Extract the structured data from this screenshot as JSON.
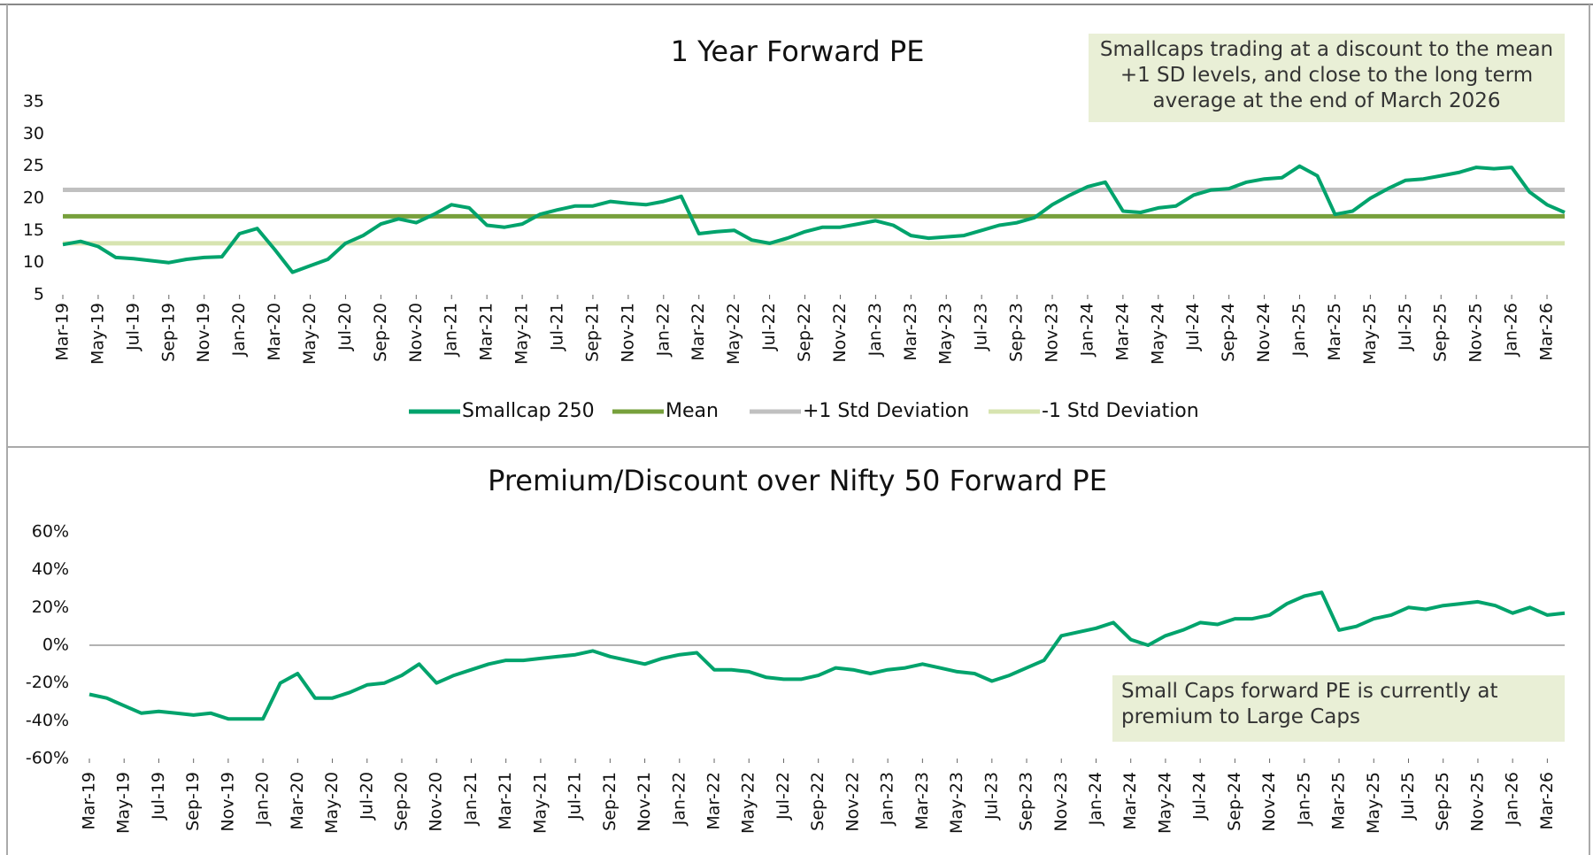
{
  "chart_data": [
    {
      "type": "line",
      "title": "1 Year Forward PE",
      "annotation": "Smallcaps trading at a discount to the mean +1 SD levels, and close to the long term average at the end of March 2026",
      "categories": [
        "Mar-19",
        null,
        "May-19",
        null,
        "Jul-19",
        null,
        "Sep-19",
        null,
        "Nov-19",
        null,
        "Jan-20",
        null,
        "Mar-20",
        null,
        "May-20",
        null,
        "Jul-20",
        null,
        "Sep-20",
        null,
        "Nov-20",
        null,
        "Jan-21",
        null,
        "Mar-21",
        null,
        "May-21",
        null,
        "Jul-21",
        null,
        "Sep-21",
        null,
        "Nov-21",
        null,
        "Jan-22",
        null,
        "Mar-22",
        null,
        "May-22",
        null,
        "Jul-22",
        null,
        "Sep-22",
        null,
        "Nov-22",
        null,
        "Jan-23",
        null,
        "Mar-23",
        null,
        "May-23",
        null,
        "Jul-23",
        null,
        "Sep-23",
        null,
        "Nov-23",
        null,
        "Jan-24",
        null,
        "Mar-24",
        null,
        "May-24",
        null,
        "Jul-24",
        null,
        "Sep-24",
        null,
        "Nov-24",
        null,
        "Jan-25",
        null,
        "Mar-25",
        null,
        "May-25",
        null,
        "Jul-25",
        null,
        "Sep-25",
        null,
        "Nov-25",
        null,
        "Jan-26",
        null,
        "Mar-26",
        null
      ],
      "series": [
        {
          "name": "Smallcap 250",
          "color": "#00a36c",
          "values": [
            12.8,
            13.3,
            12.5,
            10.8,
            10.6,
            10.3,
            10.0,
            10.5,
            10.8,
            10.9,
            14.5,
            15.3,
            12.0,
            8.5,
            9.5,
            10.5,
            13.0,
            14.2,
            16.0,
            16.8,
            16.2,
            17.5,
            19.0,
            18.5,
            15.8,
            15.5,
            16.0,
            17.5,
            18.2,
            18.8,
            18.8,
            19.5,
            19.2,
            19.0,
            19.5,
            20.3,
            14.5,
            14.8,
            15.0,
            13.5,
            13.0,
            13.8,
            14.8,
            15.5,
            15.5,
            16.0,
            16.5,
            15.8,
            14.2,
            13.8,
            14.0,
            14.2,
            15.0,
            15.8,
            16.2,
            17.0,
            19.0,
            20.5,
            21.8,
            22.5,
            18.0,
            17.8,
            18.5,
            18.8,
            20.5,
            21.3,
            21.5,
            22.5,
            23.0,
            23.2,
            25.0,
            23.5,
            17.5,
            18.0,
            20.0,
            21.5,
            22.8,
            23.0,
            23.5,
            24.0,
            24.8,
            24.6,
            24.8,
            21.0,
            19.0,
            17.8
          ]
        }
      ],
      "lines": [
        {
          "name": "Mean",
          "color": "#77a03c",
          "value": 17.2
        },
        {
          "name": "+1 Std Deviation",
          "color": "#c0c0c0",
          "value": 21.3
        },
        {
          "name": "-1 Std Deviation",
          "color": "#d7e4b0",
          "value": 13.0
        }
      ],
      "ylim": [
        5,
        35
      ],
      "yticks": [
        5,
        10,
        15,
        20,
        25,
        30,
        35
      ],
      "grid": false
    },
    {
      "type": "line",
      "title": "Premium/Discount over Nifty 50 Forward PE",
      "annotation": "Small Caps forward PE is currently at premium to Large Caps",
      "categories": [
        "Mar-19",
        null,
        "May-19",
        null,
        "Jul-19",
        null,
        "Sep-19",
        null,
        "Nov-19",
        null,
        "Jan-20",
        null,
        "Mar-20",
        null,
        "May-20",
        null,
        "Jul-20",
        null,
        "Sep-20",
        null,
        "Nov-20",
        null,
        "Jan-21",
        null,
        "Mar-21",
        null,
        "May-21",
        null,
        "Jul-21",
        null,
        "Sep-21",
        null,
        "Nov-21",
        null,
        "Jan-22",
        null,
        "Mar-22",
        null,
        "May-22",
        null,
        "Jul-22",
        null,
        "Sep-22",
        null,
        "Nov-22",
        null,
        "Jan-23",
        null,
        "Mar-23",
        null,
        "May-23",
        null,
        "Jul-23",
        null,
        "Sep-23",
        null,
        "Nov-23",
        null,
        "Jan-24",
        null,
        "Mar-24",
        null,
        "May-24",
        null,
        "Jul-24",
        null,
        "Sep-24",
        null,
        "Nov-24",
        null,
        "Jan-25",
        null,
        "Mar-25",
        null,
        "May-25",
        null,
        "Jul-25",
        null,
        "Sep-25",
        null,
        "Nov-25",
        null,
        "Jan-26",
        null,
        "Mar-26",
        null
      ],
      "series": [
        {
          "color": "#00a36c",
          "values": [
            -26,
            -28,
            -32,
            -36,
            -35,
            -36,
            -37,
            -36,
            -39,
            -39,
            -39,
            -20,
            -15,
            -28,
            -28,
            -25,
            -21,
            -20,
            -16,
            -10,
            -20,
            -16,
            -13,
            -10,
            -8,
            -8,
            -7,
            -6,
            -5,
            -3,
            -6,
            -8,
            -10,
            -7,
            -5,
            -4,
            -13,
            -13,
            -14,
            -17,
            -18,
            -18,
            -16,
            -12,
            -13,
            -15,
            -13,
            -12,
            -10,
            -12,
            -14,
            -15,
            -19,
            -16,
            -12,
            -8,
            5,
            7,
            9,
            12,
            3,
            0,
            5,
            8,
            12,
            11,
            14,
            14,
            16,
            22,
            26,
            28,
            8,
            10,
            14,
            16,
            20,
            19,
            21,
            22,
            23,
            21,
            17,
            20,
            16,
            17
          ]
        }
      ],
      "ylim": [
        -60,
        60
      ],
      "yticks": [
        {
          "value": -60,
          "label": "-60%"
        },
        {
          "value": -40,
          "label": "-40%"
        },
        {
          "value": -20,
          "label": "-20%"
        },
        {
          "value": 0,
          "label": "0%"
        },
        {
          "value": 20,
          "label": "20%"
        },
        {
          "value": 40,
          "label": "40%"
        },
        {
          "value": 60,
          "label": "60%"
        }
      ],
      "zero_line": true,
      "grid": false
    }
  ]
}
